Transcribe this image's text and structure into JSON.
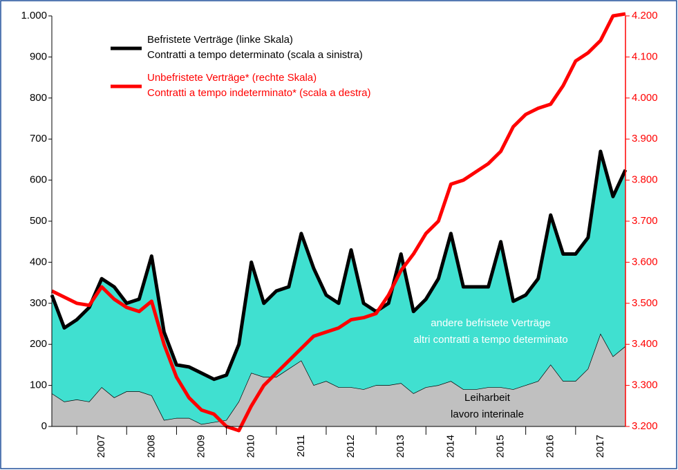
{
  "chart_data": {
    "type": "line",
    "x": [
      2006.5,
      2006.75,
      2007.0,
      2007.25,
      2007.5,
      2007.75,
      2008.0,
      2008.25,
      2008.5,
      2008.75,
      2009.0,
      2009.25,
      2009.5,
      2009.75,
      2010.0,
      2010.25,
      2010.5,
      2010.75,
      2011.0,
      2011.25,
      2011.5,
      2011.75,
      2012.0,
      2012.25,
      2012.5,
      2012.75,
      2013.0,
      2013.25,
      2013.5,
      2013.75,
      2014.0,
      2014.25,
      2014.5,
      2014.75,
      2015.0,
      2015.25,
      2015.5,
      2015.75,
      2016.0,
      2016.25,
      2016.5,
      2016.75,
      2017.0,
      2017.25,
      2017.5,
      2017.75,
      2018.0
    ],
    "series": [
      {
        "name": [
          "Befristete Verträge (linke Skala)",
          "Contratti a tempo determinato (scala a sinistra)"
        ],
        "color": "#000000",
        "fill_color": "#40e0d0",
        "axis": "y",
        "values": [
          320,
          240,
          260,
          290,
          360,
          340,
          300,
          310,
          415,
          230,
          150,
          145,
          130,
          115,
          125,
          200,
          400,
          300,
          330,
          340,
          470,
          385,
          320,
          300,
          430,
          300,
          280,
          300,
          420,
          280,
          310,
          360,
          470,
          340,
          340,
          340,
          450,
          305,
          320,
          360,
          515,
          420,
          420,
          460,
          670,
          560,
          625
        ]
      },
      {
        "name": [
          "Unbefristete Verträge* (rechte Skala)",
          "Contratti a tempo indeterminato* (scala a destra)"
        ],
        "color": "#ff0000",
        "axis": "y2",
        "values": [
          3530,
          3515,
          3500,
          3495,
          3540,
          3510,
          3490,
          3480,
          3505,
          3400,
          3320,
          3270,
          3240,
          3230,
          3200,
          3190,
          3250,
          3300,
          3330,
          3360,
          3390,
          3420,
          3430,
          3440,
          3460,
          3465,
          3475,
          3520,
          3580,
          3620,
          3670,
          3700,
          3790,
          3800,
          3820,
          3840,
          3870,
          3930,
          3960,
          3975,
          3985,
          4030,
          4090,
          4110,
          4140,
          4200,
          4205
        ]
      },
      {
        "name": [
          "Leiharbeit",
          "lavoro interinale"
        ],
        "color": "#c0c0c0",
        "axis": "y",
        "values": [
          80,
          60,
          65,
          60,
          95,
          70,
          85,
          85,
          75,
          15,
          20,
          20,
          5,
          10,
          15,
          60,
          130,
          120,
          120,
          140,
          160,
          100,
          110,
          95,
          95,
          90,
          100,
          100,
          105,
          80,
          95,
          100,
          110,
          90,
          90,
          95,
          95,
          90,
          100,
          110,
          150,
          110,
          110,
          140,
          225,
          170,
          195
        ]
      }
    ],
    "area_label": [
      "andere befristete Verträge",
      "altri contratti a tempo determinato"
    ],
    "xlim": [
      2006.5,
      2018.0
    ],
    "xticks": [
      2007,
      2008,
      2009,
      2010,
      2011,
      2012,
      2013,
      2014,
      2015,
      2016,
      2017
    ],
    "ylim": [
      0,
      1000
    ],
    "yticks": [
      0,
      100,
      200,
      300,
      400,
      500,
      600,
      700,
      800,
      900,
      {
        "value": 1000,
        "label": "1.000"
      }
    ],
    "y2lim": [
      3200,
      4200
    ],
    "y2ticks": [
      {
        "value": 3200,
        "label": "3.200"
      },
      {
        "value": 3300,
        "label": "3.300"
      },
      {
        "value": 3400,
        "label": "3.400"
      },
      {
        "value": 3500,
        "label": "3.500"
      },
      {
        "value": 3600,
        "label": "3.600"
      },
      {
        "value": 3700,
        "label": "3.700"
      },
      {
        "value": 3800,
        "label": "3.800"
      },
      {
        "value": 3900,
        "label": "3.900"
      },
      {
        "value": 4000,
        "label": "4.000"
      },
      {
        "value": 4100,
        "label": "4.100"
      },
      {
        "value": 4200,
        "label": "4.200"
      }
    ]
  }
}
